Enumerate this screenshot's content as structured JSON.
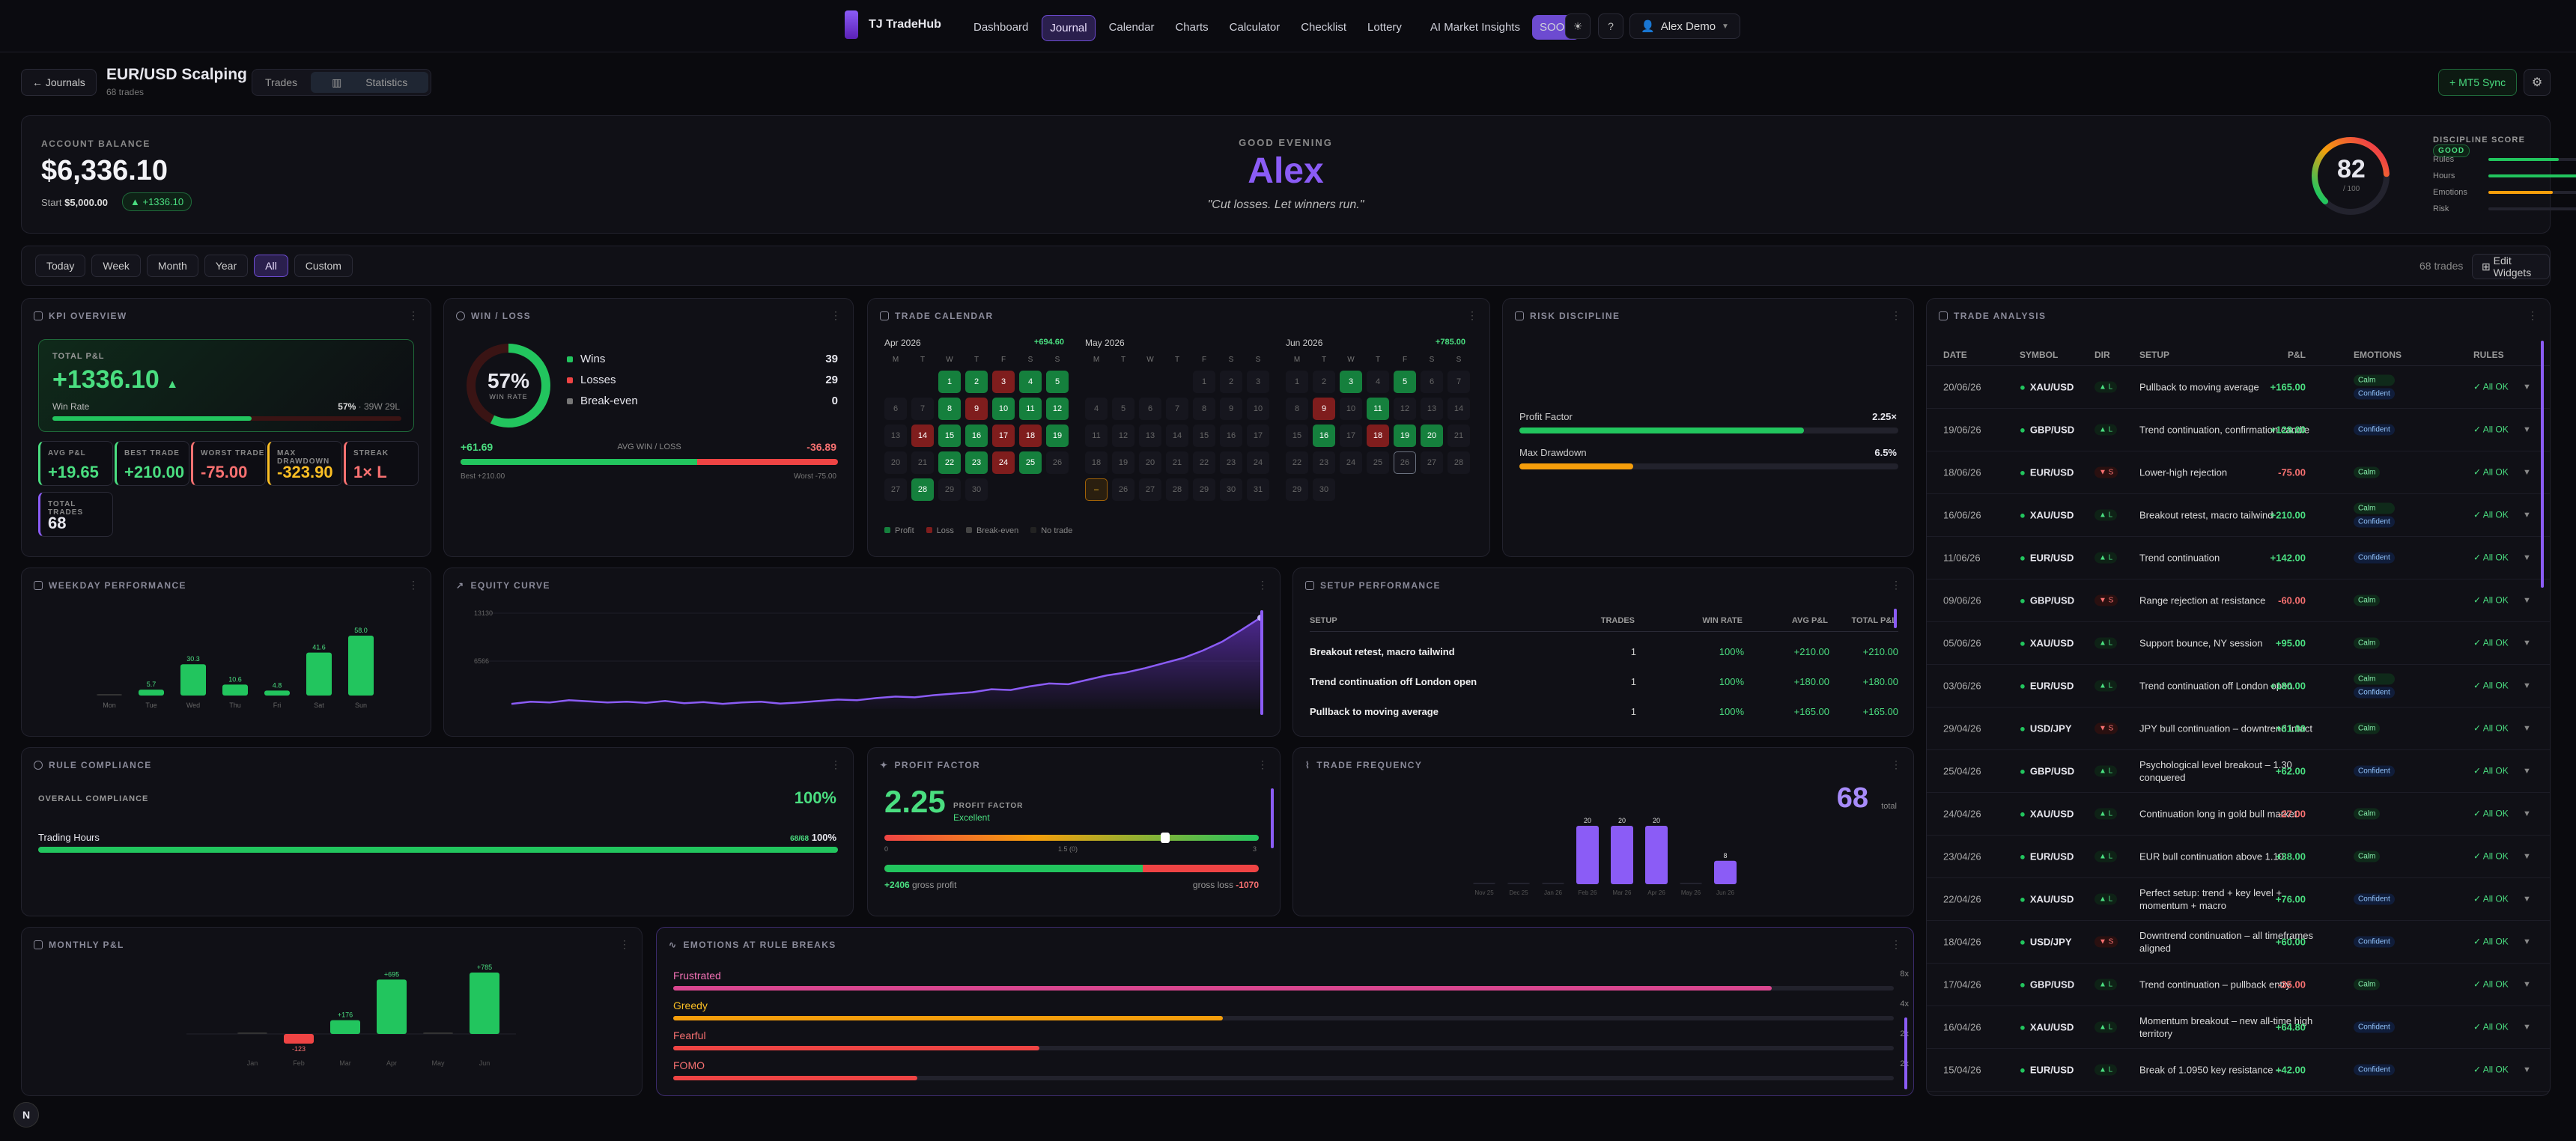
{
  "nav": {
    "brand": "TJ TradeHub",
    "links": [
      "Dashboard",
      "Journal",
      "Calendar",
      "Charts",
      "Calculator",
      "Checklist",
      "Lottery",
      "AI Market Insights"
    ],
    "soon": "SOON",
    "user": "Alex Demo"
  },
  "journal": {
    "back": "Journals",
    "title": "EUR/USD Scalping",
    "sub": "68 trades",
    "tabs": [
      "Trades",
      "Statistics"
    ],
    "mt5": "MT5 Sync"
  },
  "hero": {
    "bal_label": "ACCOUNT BALANCE",
    "balance": "$6,336.10",
    "start_label": "Start",
    "start_value": "$5,000.00",
    "delta": "▲ +1336.10",
    "greeting": "GOOD EVENING",
    "name": "Alex",
    "quote": "\"Cut losses. Let winners run.\"",
    "score": "82",
    "score_sub": "/ 100",
    "score_label": "DISCIPLINE SCORE",
    "score_badge": "GOOD",
    "score_fraction": 0.82,
    "bars": [
      {
        "label": "Rules",
        "value": "78",
        "pct": 78,
        "color": "#22c55e"
      },
      {
        "label": "Hours",
        "value": "100",
        "pct": 100,
        "color": "#22c55e"
      },
      {
        "label": "Emotions",
        "value": "72",
        "pct": 72,
        "color": "#f59e0b"
      },
      {
        "label": "Risk",
        "value": "—",
        "pct": 0,
        "color": "#444"
      }
    ]
  },
  "filters": {
    "buttons": [
      "Today",
      "Week",
      "Month",
      "Year",
      "All",
      "Custom"
    ],
    "active": "All",
    "count": "68 trades",
    "edit": "Edit Widgets"
  },
  "kpi": {
    "title": "KPI OVERVIEW",
    "pnl_label": "TOTAL P&L",
    "pnl": "+1336.10",
    "winrate_label": "Win Rate",
    "winrate": "57%",
    "winrate_detail": "· 39W 29L",
    "winrate_fraction": 0.57,
    "tiles": [
      {
        "label": "AVG P&L",
        "value": "+19.65",
        "color": "#4ade80"
      },
      {
        "label": "BEST TRADE",
        "value": "+210.00",
        "color": "#4ade80"
      },
      {
        "label": "WORST TRADE",
        "value": "-75.00",
        "color": "#f87171"
      },
      {
        "label": "MAX DRAWDOWN",
        "value": "-323.90",
        "color": "#fbbf24"
      },
      {
        "label": "STREAK",
        "value": "1× L",
        "color": "#f87171"
      }
    ],
    "total_trades_label": "TOTAL TRADES",
    "total_trades": "68"
  },
  "winloss": {
    "title": "WIN / LOSS",
    "pct": "57%",
    "pct_sub": "WIN RATE",
    "fraction": 0.57,
    "rows": [
      {
        "label": "Wins",
        "value": "39",
        "color": "#22c55e"
      },
      {
        "label": "Losses",
        "value": "29",
        "color": "#ef4444"
      },
      {
        "label": "Break-even",
        "value": "0",
        "color": "#777"
      }
    ],
    "avg_win": "+61.69",
    "avg_label": "AVG WIN / LOSS",
    "avg_loss": "-36.89",
    "best": "Best +210.00",
    "worst": "Worst -75.00"
  },
  "calendar": {
    "title": "TRADE CALENDAR",
    "months": [
      {
        "name": "Apr",
        "year": "2026",
        "total": "+694.60",
        "start": 2,
        "days": 30,
        "profit": [
          1,
          2,
          4,
          5,
          8,
          10,
          11,
          12,
          15,
          16,
          19,
          22,
          23,
          25,
          28
        ],
        "loss": [
          3,
          9,
          14,
          17,
          18,
          24
        ]
      },
      {
        "name": "May",
        "year": "2026",
        "total": "",
        "start": 4,
        "days": 31,
        "profit": [],
        "loss": [],
        "marked": [
          25
        ]
      },
      {
        "name": "Jun",
        "year": "2026",
        "total": "+785.00",
        "start": 0,
        "days": 30,
        "profit": [
          3,
          5,
          11,
          16,
          19,
          20
        ],
        "loss": [
          9,
          18
        ],
        "outlined": [
          26
        ]
      }
    ],
    "weekdays": [
      "M",
      "T",
      "W",
      "T",
      "F",
      "S",
      "S"
    ],
    "legend": [
      "Profit",
      "Loss",
      "Break-even",
      "No trade"
    ]
  },
  "risk": {
    "title": "RISK DISCIPLINE",
    "pf_label": "Profit Factor",
    "pf": "2.25×",
    "dd_label": "Max Drawdown",
    "dd": "6.5%",
    "pf_fraction": 0.75,
    "dd_fraction": 0.3
  },
  "analysis": {
    "title": "TRADE ANALYSIS",
    "headers": [
      "DATE",
      "SYMBOL",
      "DIR",
      "SETUP",
      "P&L",
      "EMOTIONS",
      "RULES"
    ],
    "rows": [
      {
        "date": "20/06/26",
        "sym": "XAU/USD",
        "dir": "▲ L",
        "setup": "Pullback to moving average",
        "pnl": "+165.00",
        "emo": [
          "Calm",
          "Confident"
        ],
        "rules": "✓ All OK"
      },
      {
        "date": "19/06/26",
        "sym": "GBP/USD",
        "dir": "▲ L",
        "setup": "Trend continuation, confirmation candle",
        "pnl": "+128.00",
        "emo": [
          "Confident"
        ],
        "rules": "✓ All OK"
      },
      {
        "date": "18/06/26",
        "sym": "EUR/USD",
        "dir": "▼ S",
        "setup": "Lower-high rejection",
        "pnl": "-75.00",
        "emo": [
          "Calm"
        ],
        "rules": "✓ All OK"
      },
      {
        "date": "16/06/26",
        "sym": "XAU/USD",
        "dir": "▲ L",
        "setup": "Breakout retest, macro tailwind",
        "pnl": "+210.00",
        "emo": [
          "Calm",
          "Confident"
        ],
        "rules": "✓ All OK"
      },
      {
        "date": "11/06/26",
        "sym": "EUR/USD",
        "dir": "▲ L",
        "setup": "Trend continuation",
        "pnl": "+142.00",
        "emo": [
          "Confident"
        ],
        "rules": "✓ All OK"
      },
      {
        "date": "09/06/26",
        "sym": "GBP/USD",
        "dir": "▼ S",
        "setup": "Range rejection at resistance",
        "pnl": "-60.00",
        "emo": [
          "Calm"
        ],
        "rules": "✓ All OK"
      },
      {
        "date": "05/06/26",
        "sym": "XAU/USD",
        "dir": "▲ L",
        "setup": "Support bounce, NY session",
        "pnl": "+95.00",
        "emo": [
          "Calm"
        ],
        "rules": "✓ All OK"
      },
      {
        "date": "03/06/26",
        "sym": "EUR/USD",
        "dir": "▲ L",
        "setup": "Trend continuation off London open",
        "pnl": "+180.00",
        "emo": [
          "Calm",
          "Confident"
        ],
        "rules": "✓ All OK"
      },
      {
        "date": "29/04/26",
        "sym": "USD/JPY",
        "dir": "▼ S",
        "setup": "JPY bull continuation – downtrend intact",
        "pnl": "+61.00",
        "emo": [
          "Calm"
        ],
        "rules": "✓ All OK"
      },
      {
        "date": "25/04/26",
        "sym": "GBP/USD",
        "dir": "▲ L",
        "setup": "Psychological level breakout – 1.30 conquered",
        "pnl": "+62.00",
        "emo": [
          "Confident"
        ],
        "rules": "✓ All OK"
      },
      {
        "date": "24/04/26",
        "sym": "XAU/USD",
        "dir": "▲ L",
        "setup": "Continuation long in gold bull market",
        "pnl": "-27.00",
        "emo": [
          "Calm"
        ],
        "rules": "✓ All OK"
      },
      {
        "date": "23/04/26",
        "sym": "EUR/USD",
        "dir": "▲ L",
        "setup": "EUR bull continuation above 1.10",
        "pnl": "+38.00",
        "emo": [
          "Calm"
        ],
        "rules": "✓ All OK"
      },
      {
        "date": "22/04/26",
        "sym": "XAU/USD",
        "dir": "▲ L",
        "setup": "Perfect setup: trend + key level + momentum + macro",
        "pnl": "+76.00",
        "emo": [
          "Confident"
        ],
        "rules": "✓ All OK"
      },
      {
        "date": "18/04/26",
        "sym": "USD/JPY",
        "dir": "▼ S",
        "setup": "Downtrend continuation – all timeframes aligned",
        "pnl": "+60.00",
        "emo": [
          "Confident"
        ],
        "rules": "✓ All OK"
      },
      {
        "date": "17/04/26",
        "sym": "GBP/USD",
        "dir": "▲ L",
        "setup": "Trend continuation – pullback entry",
        "pnl": "-35.00",
        "emo": [
          "Calm"
        ],
        "rules": "✓ All OK"
      },
      {
        "date": "16/04/26",
        "sym": "XAU/USD",
        "dir": "▲ L",
        "setup": "Momentum breakout – new all-time high territory",
        "pnl": "+64.80",
        "emo": [
          "Confident"
        ],
        "rules": "✓ All OK"
      },
      {
        "date": "15/04/26",
        "sym": "EUR/USD",
        "dir": "▲ L",
        "setup": "Break of 1.0950 key resistance –",
        "pnl": "+42.00",
        "emo": [
          "Confident"
        ],
        "rules": "✓ All OK"
      }
    ]
  },
  "weekday": {
    "title": "WEEKDAY PERFORMANCE"
  },
  "equity": {
    "title": "EQUITY CURVE",
    "ticks": [
      "13130",
      "6566"
    ]
  },
  "setup": {
    "title": "SETUP PERFORMANCE",
    "headers": [
      "SETUP",
      "TRADES",
      "WIN RATE",
      "AVG P&L",
      "TOTAL P&L"
    ],
    "rows": [
      {
        "name": "Breakout retest, macro tailwind",
        "trades": "1",
        "win": "100%",
        "avg": "+210.00",
        "total": "+210.00"
      },
      {
        "name": "Trend continuation off London open",
        "trades": "1",
        "win": "100%",
        "avg": "+180.00",
        "total": "+180.00"
      },
      {
        "name": "Pullback to moving average",
        "trades": "1",
        "win": "100%",
        "avg": "+165.00",
        "total": "+165.00"
      }
    ]
  },
  "compliance": {
    "title": "RULE COMPLIANCE",
    "overall_label": "OVERALL COMPLIANCE",
    "overall": "100%",
    "rows": [
      {
        "label": "Trading Hours",
        "count": "68/68",
        "value": "100%",
        "fraction": 1
      }
    ]
  },
  "pf": {
    "title": "PROFIT FACTOR",
    "value": "2.25",
    "label": "PROFIT FACTOR",
    "rating": "Excellent",
    "scale": [
      "0",
      "1.5 (0)",
      "3"
    ],
    "marker_fraction": 0.75,
    "gross_profit": "+2406",
    "gross_profit_label": "gross profit",
    "gross_loss_label": "gross loss",
    "gross_loss": "-1070",
    "profit_fraction": 0.69
  },
  "freq": {
    "title": "TRADE FREQUENCY",
    "total": "68",
    "total_label": "total"
  },
  "monthly": {
    "title": "MONTHLY P&L"
  },
  "emotions": {
    "title": "EMOTIONS AT RULE BREAKS",
    "rows": [
      {
        "label": "Frustrated",
        "count": "8x",
        "fraction": 0.9,
        "color": "#d9468f",
        "text": "#f472b6"
      },
      {
        "label": "Greedy",
        "count": "4x",
        "fraction": 0.45,
        "color": "#f59e0b",
        "text": "#fbbf24"
      },
      {
        "label": "Fearful",
        "count": "2x",
        "fraction": 0.3,
        "color": "#ef4444",
        "text": "#f87171"
      },
      {
        "label": "FOMO",
        "count": "2x",
        "fraction": 0.2,
        "color": "#ef4444",
        "text": "#f87171"
      }
    ]
  },
  "chart_data": [
    {
      "type": "bar",
      "title": "WEEKDAY PERFORMANCE",
      "categories": [
        "Mon",
        "Tue",
        "Wed",
        "Thu",
        "Fri",
        "Sat",
        "Sun"
      ],
      "values": [
        0,
        5.7,
        30.3,
        10.6,
        4.8,
        41.6,
        58.0
      ],
      "labels": [
        "",
        "5.7",
        "30.3",
        "10.6",
        "4.8",
        "41.6",
        "58.0"
      ]
    },
    {
      "type": "area",
      "title": "EQUITY CURVE",
      "ylim": [
        0,
        13130
      ],
      "yticks": [
        6566,
        13130
      ],
      "x": [
        0,
        1,
        2,
        3,
        4,
        5,
        6,
        7,
        8,
        9,
        10,
        11,
        12,
        13,
        14,
        15,
        16,
        17,
        18,
        19,
        20,
        21,
        22,
        23,
        24,
        25,
        26,
        27,
        28,
        29,
        30,
        31,
        32,
        33,
        34,
        35,
        36,
        37,
        38,
        39
      ],
      "values": [
        700,
        1000,
        900,
        1200,
        1050,
        900,
        1000,
        850,
        1100,
        800,
        950,
        700,
        900,
        1000,
        750,
        900,
        1100,
        1300,
        1200,
        1500,
        1700,
        1600,
        1900,
        2100,
        2300,
        2700,
        2600,
        3100,
        3500,
        3400,
        4000,
        4600,
        5000,
        5600,
        6300,
        7000,
        8000,
        9200,
        10800,
        12500
      ]
    },
    {
      "type": "bar",
      "title": "TRADE FREQUENCY",
      "categories": [
        "Nov 25",
        "Dec 25",
        "Jan 26",
        "Feb 26",
        "Mar 26",
        "Apr 26",
        "May 26",
        "Jun 26"
      ],
      "values": [
        0,
        0,
        0,
        20,
        20,
        20,
        0,
        8
      ]
    },
    {
      "type": "bar",
      "title": "MONTHLY P&L",
      "categories": [
        "Jan",
        "Feb",
        "Mar",
        "Apr",
        "May",
        "Jun"
      ],
      "values": [
        0,
        -123,
        176,
        695,
        0,
        785
      ],
      "labels": [
        "",
        "-123",
        "+176",
        "+695",
        "",
        "+785"
      ]
    }
  ]
}
